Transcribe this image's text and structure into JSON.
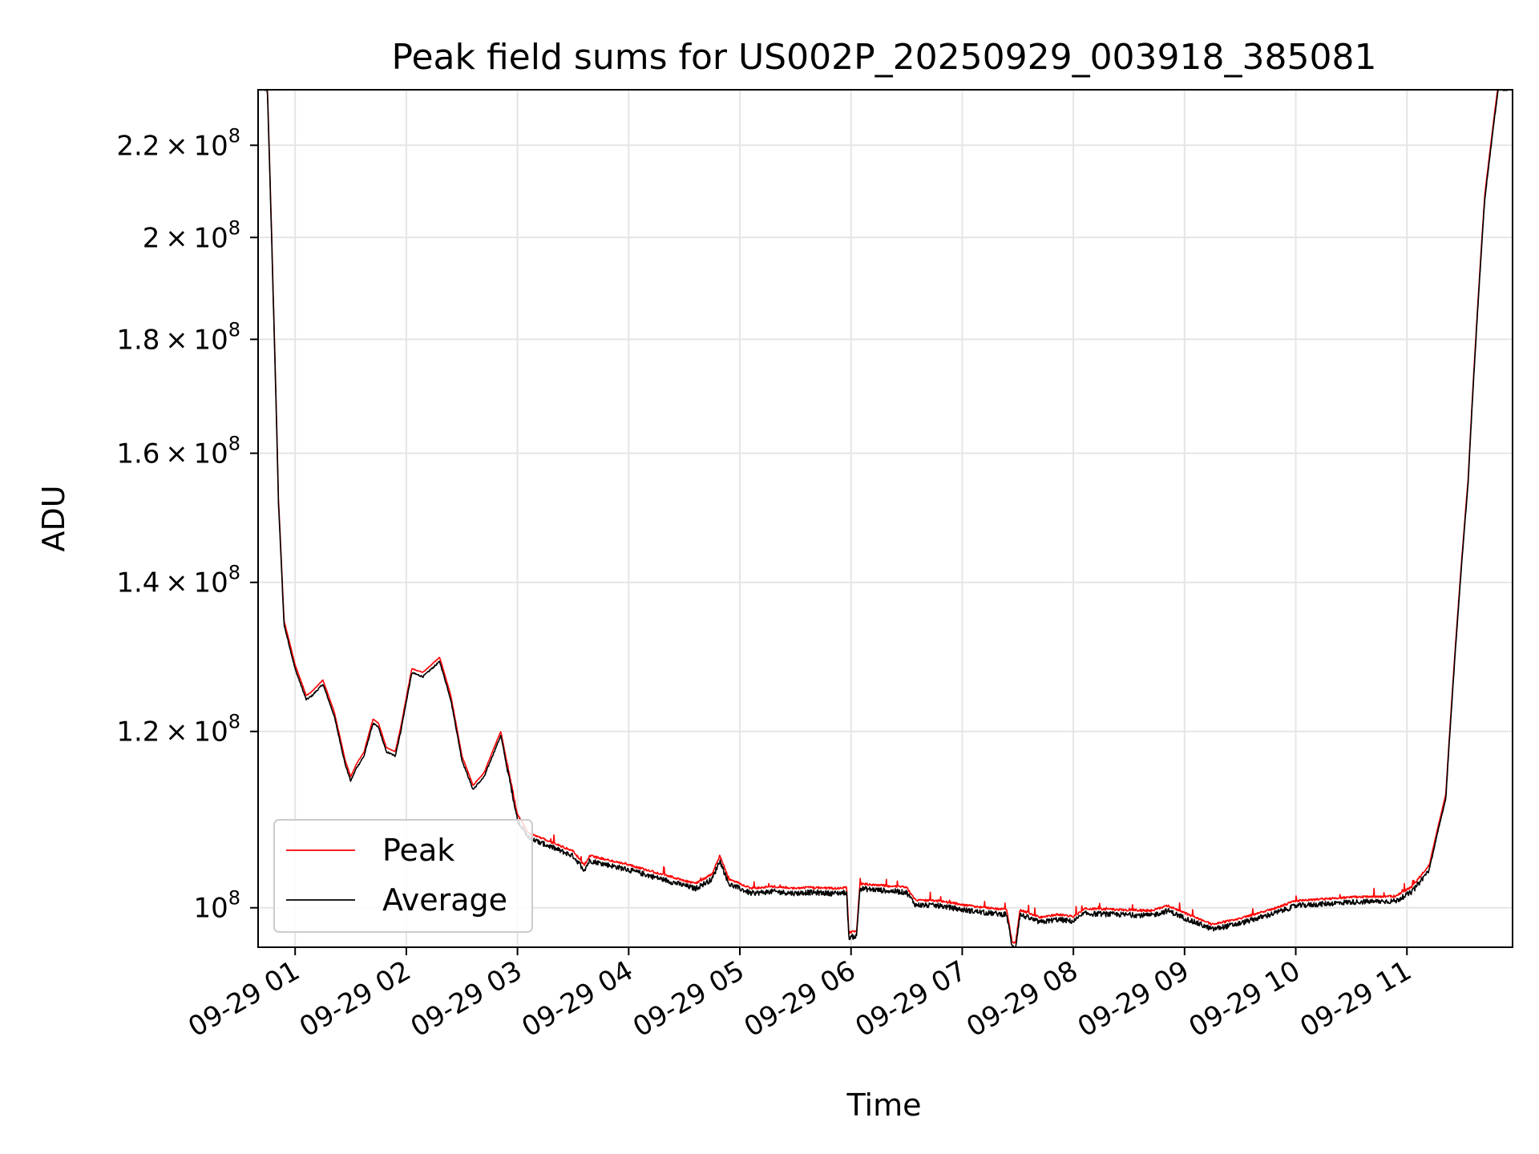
{
  "chart_data": {
    "type": "line",
    "title": "Peak field sums for US002P_20250929_003918_385081",
    "xlabel": "Time",
    "ylabel": "ADU",
    "y_scale": "log",
    "ylim": [
      96000000,
      233000000
    ],
    "xlim_hours": [
      0.667,
      11.95
    ],
    "grid": true,
    "legend_position": "lower-left",
    "x_ticks": [
      {
        "hour": 1,
        "label": "09-29 01"
      },
      {
        "hour": 2,
        "label": "09-29 02"
      },
      {
        "hour": 3,
        "label": "09-29 03"
      },
      {
        "hour": 4,
        "label": "09-29 04"
      },
      {
        "hour": 5,
        "label": "09-29 05"
      },
      {
        "hour": 6,
        "label": "09-29 06"
      },
      {
        "hour": 7,
        "label": "09-29 07"
      },
      {
        "hour": 8,
        "label": "09-29 08"
      },
      {
        "hour": 9,
        "label": "09-29 09"
      },
      {
        "hour": 10,
        "label": "09-29 10"
      },
      {
        "hour": 11,
        "label": "09-29 11"
      }
    ],
    "y_ticks": [
      {
        "value": 100000000,
        "mantissa": "",
        "exponent": "8"
      },
      {
        "value": 120000000,
        "mantissa": "1.2",
        "exponent": "8"
      },
      {
        "value": 140000000,
        "mantissa": "1.4",
        "exponent": "8"
      },
      {
        "value": 160000000,
        "mantissa": "1.6",
        "exponent": "8"
      },
      {
        "value": 180000000,
        "mantissa": "1.8",
        "exponent": "8"
      },
      {
        "value": 200000000,
        "mantissa": "2",
        "exponent": "8"
      },
      {
        "value": 220000000,
        "mantissa": "2.2",
        "exponent": "8"
      }
    ],
    "y_tick_base": "10",
    "series": [
      {
        "name": "Peak",
        "color": "#ff0000",
        "peak_offset_fraction": 0.004
      },
      {
        "name": "Average",
        "color": "#000000",
        "points": [
          [
            0.667,
            233000000
          ],
          [
            0.75,
            233000000
          ],
          [
            0.8,
            190000000
          ],
          [
            0.85,
            152000000
          ],
          [
            0.9,
            134000000
          ],
          [
            1.0,
            128000000
          ],
          [
            1.1,
            124000000
          ],
          [
            1.15,
            124500000
          ],
          [
            1.25,
            126000000
          ],
          [
            1.35,
            122000000
          ],
          [
            1.45,
            116000000
          ],
          [
            1.5,
            114000000
          ],
          [
            1.55,
            115500000
          ],
          [
            1.62,
            117000000
          ],
          [
            1.7,
            121000000
          ],
          [
            1.75,
            120500000
          ],
          [
            1.82,
            117500000
          ],
          [
            1.9,
            117000000
          ],
          [
            1.95,
            120000000
          ],
          [
            2.05,
            127500000
          ],
          [
            2.15,
            127000000
          ],
          [
            2.3,
            129000000
          ],
          [
            2.4,
            124000000
          ],
          [
            2.5,
            116500000
          ],
          [
            2.6,
            113000000
          ],
          [
            2.7,
            114500000
          ],
          [
            2.85,
            119500000
          ],
          [
            2.9,
            116000000
          ],
          [
            3.0,
            109500000
          ],
          [
            3.1,
            107500000
          ],
          [
            3.2,
            107000000
          ],
          [
            3.5,
            105500000
          ],
          [
            3.6,
            104000000
          ],
          [
            3.65,
            105000000
          ],
          [
            4.0,
            104000000
          ],
          [
            4.3,
            103000000
          ],
          [
            4.6,
            102000000
          ],
          [
            4.75,
            103000000
          ],
          [
            4.82,
            105000000
          ],
          [
            4.9,
            102500000
          ],
          [
            5.1,
            101500000
          ],
          [
            5.3,
            101700000
          ],
          [
            5.5,
            101500000
          ],
          [
            5.6,
            101600000
          ],
          [
            5.85,
            101500000
          ],
          [
            5.96,
            101600000
          ],
          [
            5.98,
            97000000
          ],
          [
            6.05,
            97100000
          ],
          [
            6.08,
            102000000
          ],
          [
            6.3,
            101800000
          ],
          [
            6.5,
            101600000
          ],
          [
            6.58,
            100300000
          ],
          [
            6.8,
            100200000
          ],
          [
            7.0,
            99800000
          ],
          [
            7.2,
            99500000
          ],
          [
            7.4,
            99300000
          ],
          [
            7.45,
            96000000
          ],
          [
            7.48,
            96000000
          ],
          [
            7.52,
            99300000
          ],
          [
            7.7,
            98500000
          ],
          [
            7.85,
            98800000
          ],
          [
            8.0,
            98600000
          ],
          [
            8.1,
            99400000
          ],
          [
            8.4,
            99300000
          ],
          [
            8.7,
            99200000
          ],
          [
            8.85,
            99700000
          ],
          [
            9.05,
            98700000
          ],
          [
            9.25,
            97800000
          ],
          [
            9.5,
            98400000
          ],
          [
            9.8,
            99400000
          ],
          [
            10.0,
            100200000
          ],
          [
            10.5,
            100600000
          ],
          [
            10.9,
            100700000
          ],
          [
            11.05,
            101700000
          ],
          [
            11.2,
            104000000
          ],
          [
            11.35,
            112000000
          ],
          [
            11.55,
            155000000
          ],
          [
            11.7,
            208000000
          ],
          [
            11.82,
            233000000
          ],
          [
            11.95,
            233000000
          ]
        ]
      }
    ]
  }
}
